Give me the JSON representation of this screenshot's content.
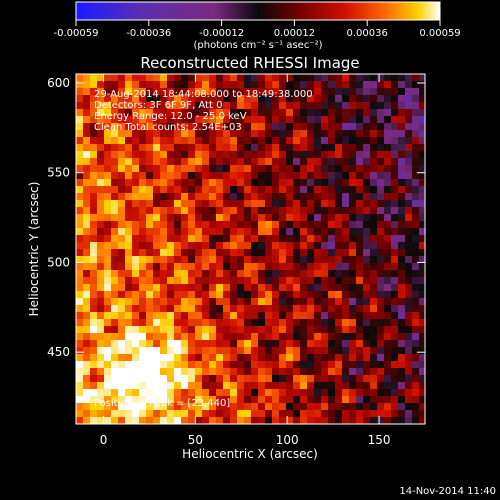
{
  "colorbar": {
    "ticks": [
      "-0.00059",
      "-0.00036",
      "-0.00012",
      "0.00012",
      "0.00036",
      "0.00059"
    ],
    "unit_label": "(photons cm⁻² s⁻¹ asec⁻²)",
    "colors": [
      "#1a1aff",
      "#5b2fb0",
      "#7a2a80",
      "#0a0a0a",
      "#7a0000",
      "#d01000",
      "#ff6a00",
      "#ffd000",
      "#ffffff"
    ]
  },
  "footer": {
    "timestamp": "14-Nov-2014 11:40"
  },
  "chart_data": {
    "type": "heatmap",
    "title": "Reconstructed RHESSI Image",
    "xlabel": "Heliocentric X (arcsec)",
    "ylabel": "Heliocentric Y (arcsec)",
    "xlim": [
      -15,
      175
    ],
    "ylim": [
      410,
      605
    ],
    "xticks": [
      0,
      50,
      100,
      150
    ],
    "yticks": [
      450,
      500,
      550,
      600
    ],
    "info_lines": [
      "29-Aug-2014 18:44:08.000 to 18:49:38.000",
      "Detectors: 3F 6F 9F, Att 0",
      "Energy Range: 12.0 - 25.0 keV",
      "Clean     Total counts: 2.54E+03"
    ],
    "peak_label": "Position of Peak = [23,440]",
    "peak": [
      23,
      440
    ]
  }
}
